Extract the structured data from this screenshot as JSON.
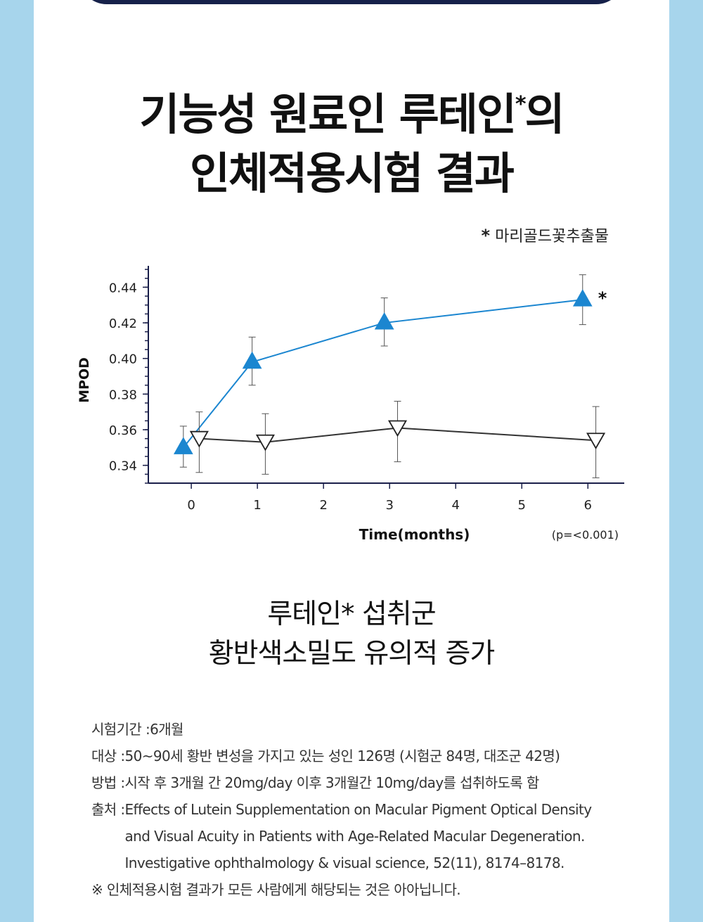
{
  "heading": {
    "line1_pre": "기능성 원료인 루테인",
    "line1_star": "*",
    "line1_post": "의",
    "line2": "인체적용시험 결과"
  },
  "footnote_marker": "*",
  "footnote_text": "마리골드꽃추출물",
  "chart_data": {
    "type": "line",
    "xlabel": "Time(months)",
    "ylabel": "MPOD",
    "x_ticks": [
      0,
      1,
      2,
      3,
      4,
      5,
      6
    ],
    "y_ticks": [
      0.34,
      0.36,
      0.38,
      0.4,
      0.42,
      0.44
    ],
    "xlim": [
      -0.65,
      6.55
    ],
    "ylim": [
      0.33,
      0.452
    ],
    "significance_mark": "*",
    "p_value_text": "(p=<0.001)",
    "series": [
      {
        "marker": "filled-triangle-up",
        "color": "#1b86d0",
        "x": [
          -0.12,
          0.92,
          2.92,
          5.92
        ],
        "y": [
          0.35,
          0.398,
          0.42,
          0.433
        ],
        "err_low": [
          0.339,
          0.385,
          0.407,
          0.419
        ],
        "err_high": [
          0.362,
          0.412,
          0.434,
          0.447
        ]
      },
      {
        "marker": "open-triangle-down",
        "color": "#333333",
        "x": [
          0.12,
          1.12,
          3.12,
          6.12
        ],
        "y": [
          0.355,
          0.353,
          0.361,
          0.354
        ],
        "err_low": [
          0.336,
          0.335,
          0.342,
          0.333
        ],
        "err_high": [
          0.37,
          0.369,
          0.376,
          0.373
        ]
      }
    ]
  },
  "conclusion": {
    "line1": "루테인* 섭취군",
    "line2": "황반색소밀도 유의적 증가"
  },
  "details": {
    "period_label": "시험기간 : ",
    "period_value": "6개월",
    "subject_label": "대상 : ",
    "subject_value": "50~90세 황반 변성을 가지고 있는 성인 126명 (시험군 84명, 대조군 42명)",
    "method_label": "방법 : ",
    "method_value": "시작 후 3개월 간 20mg/day 이후 3개월간 10mg/day를 섭취하도록 함",
    "source_label": "출처 : ",
    "source_line1": "Effects of Lutein Supplementation on Macular Pigment Optical Density",
    "source_line2": "and Visual Acuity in Patients with Age-Related Macular Degeneration.",
    "source_line3": "Investigative ophthalmology & visual science, 52(11), 8174–8178.",
    "disclaimer": "※ 인체적용시험 결과가 모든 사람에게 해당되는 것은 아아닙니다."
  }
}
